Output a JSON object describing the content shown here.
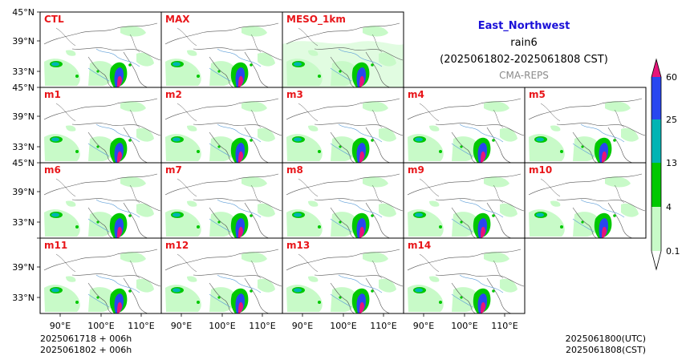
{
  "header": {
    "region": "East_Northwest",
    "variable": "rain6",
    "period": "(2025061802-2025061808 CST)",
    "model": "CMA-REPS",
    "region_color": "#1a10d8",
    "model_color": "#8a8a8a"
  },
  "panels": [
    {
      "label": "CTL"
    },
    {
      "label": "MAX"
    },
    {
      "label": "MESO_1km"
    },
    {
      "label": "m1"
    },
    {
      "label": "m2"
    },
    {
      "label": "m3"
    },
    {
      "label": "m4"
    },
    {
      "label": "m5"
    },
    {
      "label": "m6"
    },
    {
      "label": "m7"
    },
    {
      "label": "m8"
    },
    {
      "label": "m9"
    },
    {
      "label": "m10"
    },
    {
      "label": "m11"
    },
    {
      "label": "m12"
    },
    {
      "label": "m13"
    },
    {
      "label": "m14"
    }
  ],
  "axes": {
    "lat_labels": [
      "45°N",
      "39°N",
      "33°N"
    ],
    "lon_labels": [
      "90°E",
      "100°E",
      "110°E"
    ]
  },
  "footer": {
    "init_utc": "2025061718  +  006h",
    "init_cst": "2025061802  +  006h",
    "valid_utc": "2025061800(UTC)",
    "valid_cst": "2025061808(CST)"
  },
  "colorbar": {
    "ticks": [
      "0.1",
      "4",
      "13",
      "25",
      "60"
    ],
    "colors": [
      "#ffffff",
      "#c8fac8",
      "#00c800",
      "#00b4b4",
      "#2846f0",
      "#e6147a"
    ]
  }
}
